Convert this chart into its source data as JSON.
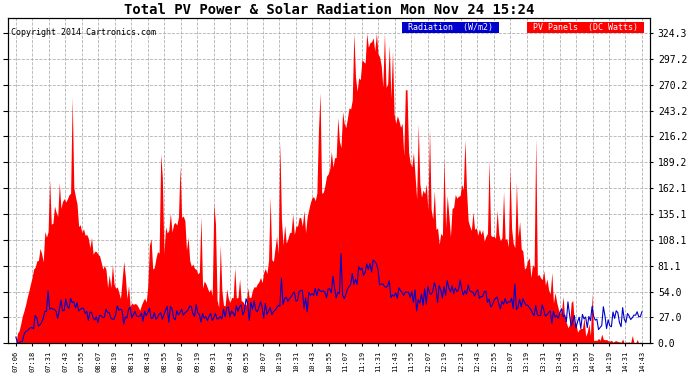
{
  "title": "Total PV Power & Solar Radiation Mon Nov 24 15:24",
  "copyright": "Copyright 2014 Cartronics.com",
  "bg_color": "#ffffff",
  "plot_bg_color": "#ffffff",
  "grid_color": "#aaaaaa",
  "x_tick_labels": [
    "07:06",
    "07:18",
    "07:31",
    "07:43",
    "07:55",
    "08:07",
    "08:19",
    "08:31",
    "08:43",
    "08:55",
    "09:07",
    "09:19",
    "09:31",
    "09:43",
    "09:55",
    "10:07",
    "10:19",
    "10:31",
    "10:43",
    "10:55",
    "11:07",
    "11:19",
    "11:31",
    "11:43",
    "11:55",
    "12:07",
    "12:19",
    "12:31",
    "12:43",
    "12:55",
    "13:07",
    "13:19",
    "13:31",
    "13:43",
    "13:55",
    "14:07",
    "14:19",
    "14:31",
    "14:43"
  ],
  "y_right_ticks": [
    0.0,
    27.0,
    54.0,
    81.1,
    108.1,
    135.1,
    162.1,
    189.2,
    216.2,
    243.2,
    270.2,
    297.2,
    324.3
  ],
  "ylim": [
    0,
    340
  ],
  "pv_color": "#ff0000",
  "radiation_color": "#0000cc",
  "legend_radiation_bg": "#0000cc",
  "legend_pv_bg": "#ff0000",
  "legend_radiation_text": "Radiation  (W/m2)",
  "legend_pv_text": "PV Panels  (DC Watts)"
}
